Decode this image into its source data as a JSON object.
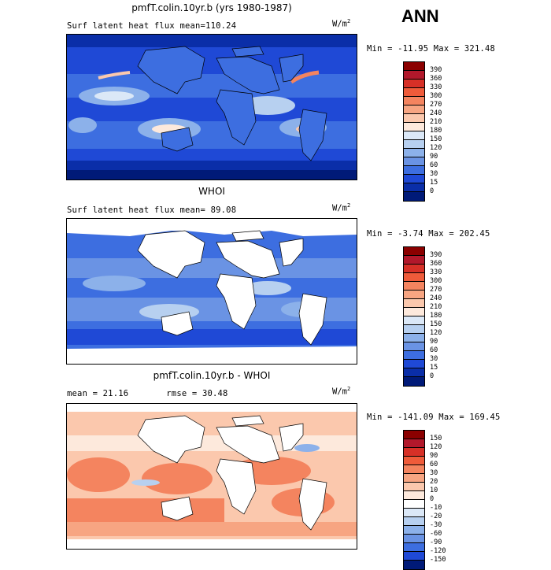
{
  "season": "ANN",
  "panels": [
    {
      "title": "pmfT.colin.10yr.b (yrs 1980-1987)",
      "left_label": "Surf latent heat flux     mean=",
      "mean": "110.24",
      "units": "W/m",
      "units_exp": "2",
      "minmax": "Min = -11.95 Max = 321.48",
      "colorbar_labels": [
        "390",
        "360",
        "330",
        "300",
        "270",
        "240",
        "210",
        "180",
        "150",
        "120",
        "90",
        "60",
        "30",
        "15",
        "0"
      ],
      "colorbar_colors": [
        "#8b0000",
        "#b2182b",
        "#d73027",
        "#ef5b3a",
        "#f4845f",
        "#f7a582",
        "#fbc8ad",
        "#fde9dc",
        "#dbe8f7",
        "#b7d0f0",
        "#8cb1ea",
        "#6a93e4",
        "#3d6ee0",
        "#1f49d6",
        "#0a2ea8",
        "#001a78"
      ]
    },
    {
      "title": "WHOI",
      "left_label": "Surf latent heat flux     mean=",
      "mean": " 89.08",
      "units": "W/m",
      "units_exp": "2",
      "minmax": "Min =  -3.74 Max = 202.45",
      "colorbar_labels": [
        "390",
        "360",
        "330",
        "300",
        "270",
        "240",
        "210",
        "180",
        "150",
        "120",
        "90",
        "60",
        "30",
        "15",
        "0"
      ],
      "colorbar_colors": [
        "#8b0000",
        "#b2182b",
        "#d73027",
        "#ef5b3a",
        "#f4845f",
        "#f7a582",
        "#fbc8ad",
        "#fde9dc",
        "#dbe8f7",
        "#b7d0f0",
        "#8cb1ea",
        "#6a93e4",
        "#3d6ee0",
        "#1f49d6",
        "#0a2ea8",
        "#001a78"
      ]
    },
    {
      "title": "pmfT.colin.10yr.b - WHOI",
      "left_label": "mean =",
      "mean": " 21.16",
      "rmse_label": "rmse =",
      "rmse": " 30.48",
      "units": "W/m",
      "units_exp": "2",
      "minmax": "Min = -141.09 Max = 169.45",
      "colorbar_labels": [
        "150",
        "120",
        "90",
        "60",
        "30",
        "20",
        "10",
        "0",
        "-10",
        "-20",
        "-30",
        "-60",
        "-90",
        "-120",
        "-150"
      ],
      "colorbar_colors": [
        "#8b0000",
        "#b2182b",
        "#d73027",
        "#ef5b3a",
        "#f4845f",
        "#f7a582",
        "#fbc8ad",
        "#fde9dc",
        "#ffffff",
        "#dbe8f7",
        "#b7d0f0",
        "#8cb1ea",
        "#6a93e4",
        "#3d6ee0",
        "#1f49d6",
        "#001a78"
      ]
    }
  ]
}
